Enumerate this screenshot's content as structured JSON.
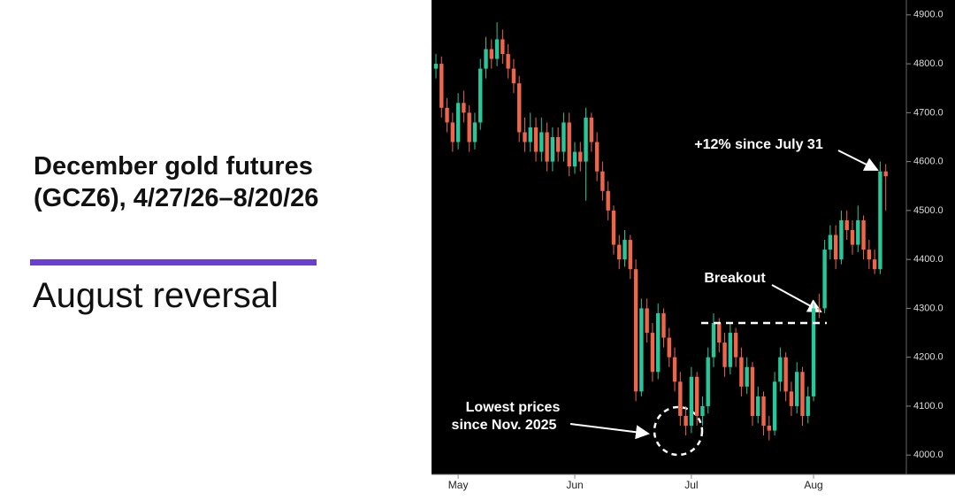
{
  "chart_data": {
    "type": "candlestick",
    "title": "December gold futures (GCZ6), 4/27/26–8/20/26",
    "subtitle": "August reversal",
    "categories": [
      null,
      null,
      null,
      null,
      "May",
      null,
      null,
      null,
      null,
      null,
      null,
      null,
      null,
      null,
      null,
      null,
      null,
      null,
      null,
      null,
      null,
      null,
      null,
      null,
      null,
      "Jun",
      null,
      null,
      null,
      null,
      null,
      null,
      null,
      null,
      null,
      null,
      null,
      null,
      null,
      null,
      null,
      null,
      null,
      null,
      null,
      null,
      "Jul",
      null,
      null,
      null,
      null,
      null,
      null,
      null,
      null,
      null,
      null,
      null,
      null,
      null,
      null,
      null,
      null,
      null,
      null,
      null,
      null,
      null,
      "Aug",
      null,
      null,
      null,
      null,
      null,
      null,
      null,
      null,
      null,
      null,
      null,
      null,
      null
    ],
    "open": [
      4790,
      4800,
      4710,
      4680,
      4640,
      4720,
      4700,
      4640,
      4680,
      4790,
      4830,
      4810,
      4850,
      4820,
      4790,
      4760,
      4660,
      4640,
      4670,
      4620,
      4660,
      4600,
      4650,
      4620,
      4680,
      4590,
      4620,
      4600,
      4690,
      4640,
      4580,
      4540,
      4500,
      4430,
      4400,
      4440,
      4380,
      4130,
      4300,
      4250,
      4170,
      4290,
      4240,
      4200,
      4150,
      4080,
      4060,
      4160,
      4080,
      4100,
      4200,
      4270,
      4230,
      4180,
      4250,
      4200,
      4140,
      4180,
      4080,
      4120,
      4060,
      4050,
      4150,
      4200,
      4130,
      4100,
      4170,
      4080,
      4120,
      4300,
      4300,
      4420,
      4450,
      4400,
      4480,
      4460,
      4430,
      4480,
      4420,
      4400,
      4380,
      4580
    ],
    "high": [
      4820,
      4815,
      4730,
      4700,
      4740,
      4745,
      4715,
      4700,
      4810,
      4855,
      4850,
      4885,
      4870,
      4840,
      4810,
      4775,
      4690,
      4700,
      4690,
      4690,
      4680,
      4670,
      4670,
      4700,
      4700,
      4640,
      4640,
      4710,
      4700,
      4660,
      4600,
      4560,
      4510,
      4450,
      4460,
      4450,
      4400,
      4320,
      4320,
      4270,
      4310,
      4300,
      4260,
      4220,
      4170,
      4100,
      4180,
      4170,
      4120,
      4220,
      4290,
      4280,
      4250,
      4270,
      4260,
      4220,
      4200,
      4190,
      4140,
      4130,
      4080,
      4170,
      4220,
      4210,
      4150,
      4190,
      4180,
      4140,
      4310,
      4330,
      4440,
      4470,
      4470,
      4500,
      4500,
      4480,
      4510,
      4490,
      4440,
      4420,
      4600,
      4595
    ],
    "low": [
      4770,
      4690,
      4660,
      4620,
      4625,
      4680,
      4620,
      4625,
      4665,
      4770,
      4790,
      4795,
      4800,
      4770,
      4740,
      4640,
      4620,
      4620,
      4600,
      4600,
      4580,
      4580,
      4600,
      4600,
      4570,
      4575,
      4580,
      4520,
      4620,
      4560,
      4520,
      4480,
      4410,
      4380,
      4385,
      4360,
      4110,
      4120,
      4230,
      4150,
      4155,
      4220,
      4180,
      4130,
      4060,
      4040,
      4045,
      4060,
      4060,
      4085,
      4180,
      4210,
      4160,
      4165,
      4180,
      4120,
      4125,
      4060,
      4065,
      4040,
      4030,
      4040,
      4130,
      4110,
      4080,
      4085,
      4060,
      4065,
      4110,
      4280,
      4290,
      4400,
      4380,
      4390,
      4440,
      4410,
      4415,
      4400,
      4380,
      4370,
      4370,
      4500
    ],
    "close": [
      4800,
      4710,
      4680,
      4640,
      4720,
      4700,
      4640,
      4680,
      4790,
      4830,
      4810,
      4850,
      4820,
      4790,
      4760,
      4660,
      4640,
      4670,
      4620,
      4660,
      4600,
      4650,
      4620,
      4680,
      4590,
      4620,
      4600,
      4690,
      4640,
      4580,
      4540,
      4500,
      4430,
      4400,
      4440,
      4380,
      4130,
      4300,
      4250,
      4170,
      4290,
      4240,
      4200,
      4150,
      4080,
      4060,
      4160,
      4080,
      4100,
      4200,
      4270,
      4230,
      4180,
      4250,
      4200,
      4140,
      4180,
      4080,
      4120,
      4060,
      4050,
      4150,
      4200,
      4130,
      4100,
      4170,
      4080,
      4120,
      4300,
      4300,
      4420,
      4450,
      4400,
      4480,
      4460,
      4430,
      4480,
      4420,
      4400,
      4380,
      4580,
      4570
    ],
    "up_color": "#27c79a",
    "down_color": "#ef6548",
    "ylim": [
      3966,
      4925
    ],
    "yticks": [
      {
        "value": 4000,
        "label": "4000.0"
      },
      {
        "value": 4100,
        "label": "4100.0"
      },
      {
        "value": 4200,
        "label": "4200.0"
      },
      {
        "value": 4300,
        "label": "4300.0"
      },
      {
        "value": 4400,
        "label": "4400.0"
      },
      {
        "value": 4500,
        "label": "4500.0"
      },
      {
        "value": 4600,
        "label": "4600.0"
      },
      {
        "value": 4700,
        "label": "4700.0"
      },
      {
        "value": 4800,
        "label": "4800.0"
      },
      {
        "value": 4900,
        "label": "4900.0"
      }
    ],
    "grid": false,
    "breakout_level": 4270,
    "annotations": {
      "rally": "+12% since July 31",
      "breakout": "Breakout",
      "low_line1": "Lowest prices",
      "low_line2": "since Nov. 2025"
    }
  }
}
